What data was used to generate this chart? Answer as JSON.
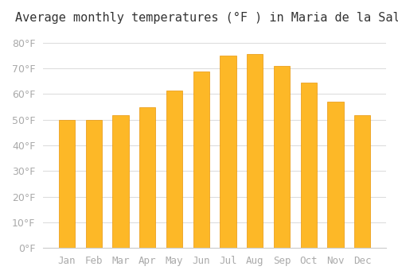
{
  "title": "Average monthly temperatures (°F ) in Maria de la Salut",
  "months": [
    "Jan",
    "Feb",
    "Mar",
    "Apr",
    "May",
    "Jun",
    "Jul",
    "Aug",
    "Sep",
    "Oct",
    "Nov",
    "Dec"
  ],
  "values": [
    49.8,
    50.0,
    51.8,
    55.0,
    61.3,
    68.9,
    75.0,
    75.6,
    71.1,
    64.4,
    57.0,
    51.8
  ],
  "bar_color": "#FDB827",
  "bar_edge_color": "#E8960A",
  "background_color": "#ffffff",
  "grid_color": "#dddddd",
  "ylim": [
    0,
    84
  ],
  "yticks": [
    0,
    10,
    20,
    30,
    40,
    50,
    60,
    70,
    80
  ],
  "title_fontsize": 11,
  "tick_fontsize": 9,
  "tick_label_color": "#aaaaaa"
}
